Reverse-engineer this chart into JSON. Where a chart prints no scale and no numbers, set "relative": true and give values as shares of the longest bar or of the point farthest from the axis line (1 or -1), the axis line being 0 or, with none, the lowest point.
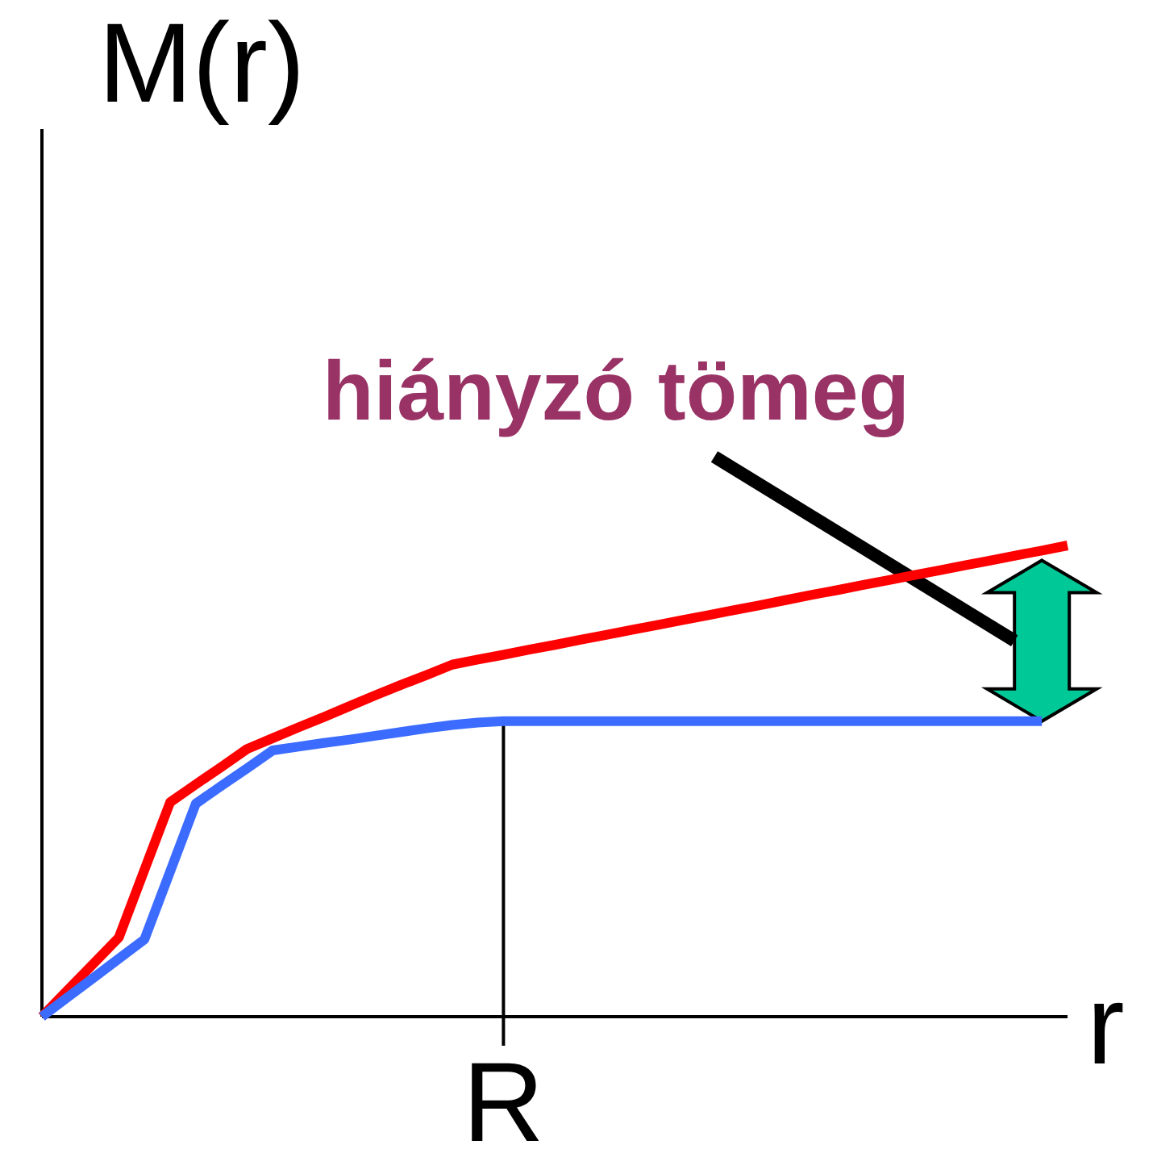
{
  "chart_data": {
    "type": "line",
    "relative": true,
    "ylabel": "M(r)",
    "xlabel": "r",
    "categories": [
      null,
      null,
      null,
      null,
      null,
      null,
      null,
      null,
      null,
      null,
      null,
      null,
      null,
      null,
      null,
      null,
      null,
      null,
      null,
      null,
      null,
      null,
      null,
      null,
      null,
      null,
      null,
      null,
      null,
      null,
      null,
      null,
      null,
      null,
      null,
      null,
      null,
      null,
      null,
      null,
      null
    ],
    "series": [
      {
        "color": "#ff0000",
        "values": [
          0,
          0.056,
          0.112,
          0.168,
          0.312,
          0.455,
          0.493,
          0.53,
          0.568,
          0.591,
          0.614,
          0.636,
          0.659,
          0.682,
          0.704,
          0.725,
          0.747,
          0.758,
          0.768,
          0.779,
          0.789,
          0.8,
          0.81,
          0.821,
          0.831,
          0.842,
          0.852,
          0.863,
          0.873,
          0.884,
          0.895,
          0.905,
          0.916,
          0.926,
          0.937,
          0.947,
          0.958,
          0.968,
          0.979,
          0.989,
          1
        ]
      },
      {
        "color": "#3c6cff",
        "values": [
          0,
          0.041,
          0.082,
          0.123,
          0.164,
          0.308,
          0.452,
          0.49,
          0.527,
          0.565,
          0.573,
          0.581,
          0.588,
          0.596,
          0.604,
          0.612,
          0.619,
          0.624,
          0.627,
          0.627,
          0.627,
          0.627,
          0.627,
          0.627,
          0.627,
          0.627,
          0.627,
          0.627,
          0.627,
          0.627,
          0.627,
          0.627,
          0.627,
          0.627,
          0.627,
          0.627,
          0.627,
          0.627,
          0.627,
          0.627,
          null
        ]
      }
    ],
    "annotations": [
      "hiányzó tömeg",
      "R"
    ]
  }
}
